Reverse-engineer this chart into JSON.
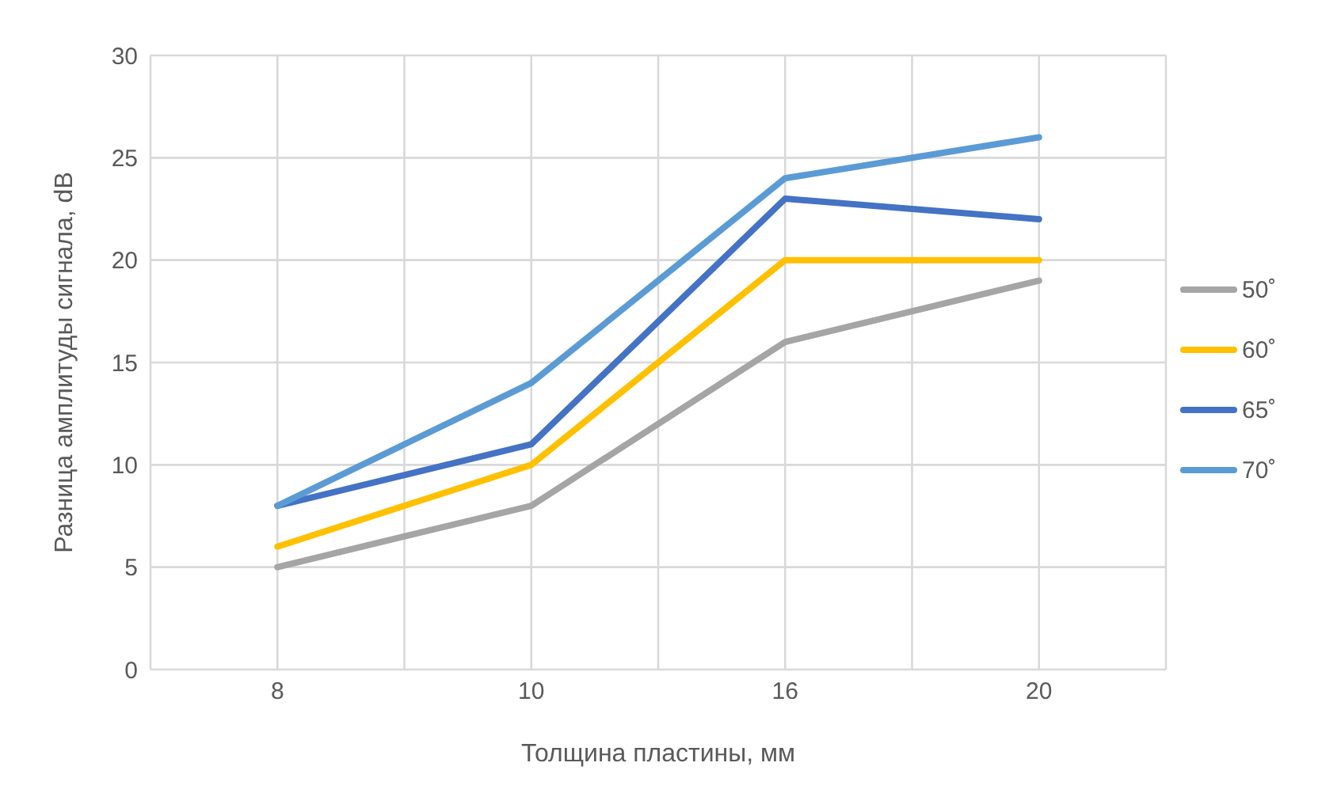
{
  "chart_data": {
    "type": "line",
    "xlabel": "Толщина пластины, мм",
    "ylabel": "Разница амплитуды сигнала, dB",
    "categories": [
      "8",
      "10",
      "16",
      "20"
    ],
    "ylim": [
      0,
      30
    ],
    "yticks": [
      0,
      5,
      10,
      15,
      20,
      25,
      30
    ],
    "grid": true,
    "legend": "right",
    "marker": "none",
    "line_style": "solid",
    "series": [
      {
        "name": "50˚",
        "color": "#a5a5a5",
        "values": [
          5,
          8,
          16,
          19
        ]
      },
      {
        "name": "60˚",
        "color": "#ffc000",
        "values": [
          6,
          10,
          20,
          20
        ]
      },
      {
        "name": "65˚",
        "color": "#4472c4",
        "values": [
          8,
          11,
          23,
          22
        ]
      },
      {
        "name": "70˚",
        "color": "#5b9bd5",
        "values": [
          8,
          14,
          24,
          26
        ]
      }
    ]
  }
}
